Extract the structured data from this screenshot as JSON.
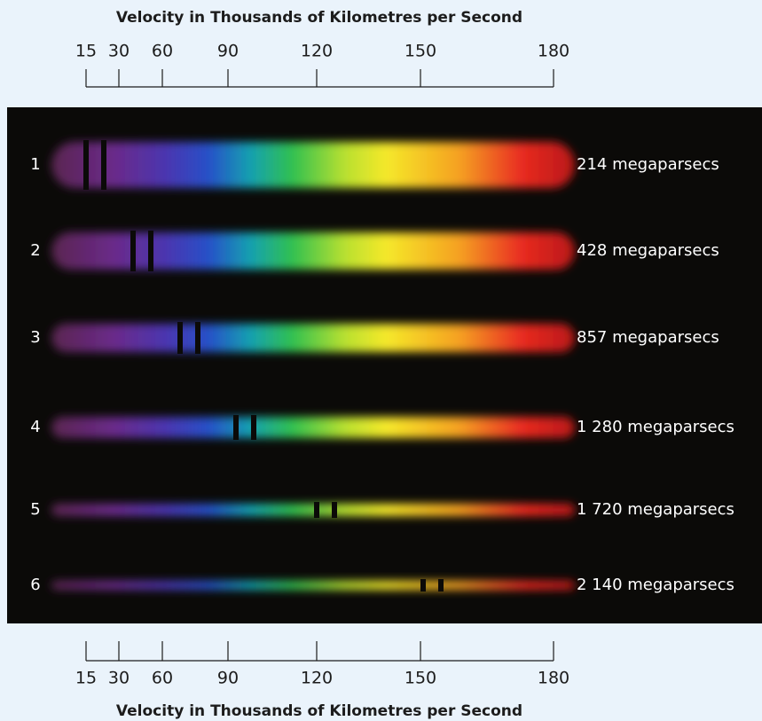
{
  "top_axis": {
    "title": "Velocity in Thousands of Kilometres per Second",
    "ticks": [
      "15",
      "30",
      "60",
      "90",
      "120",
      "150",
      "180"
    ]
  },
  "rows": [
    {
      "label": "1",
      "distance": "214 megaparsecs"
    },
    {
      "label": "2",
      "distance": "428 megaparsecs"
    },
    {
      "label": "3",
      "distance": "857 megaparsecs"
    },
    {
      "label": "4",
      "distance": "1 280 megaparsecs"
    },
    {
      "label": "5",
      "distance": "1 720 megaparsecs"
    },
    {
      "label": "6",
      "distance": "2 140 megaparsecs"
    }
  ],
  "bottom_axis": {
    "title": "Velocity in Thousands of Kilometres per Second",
    "ticks": [
      "15",
      "30",
      "60",
      "90",
      "120",
      "150",
      "180"
    ]
  }
}
